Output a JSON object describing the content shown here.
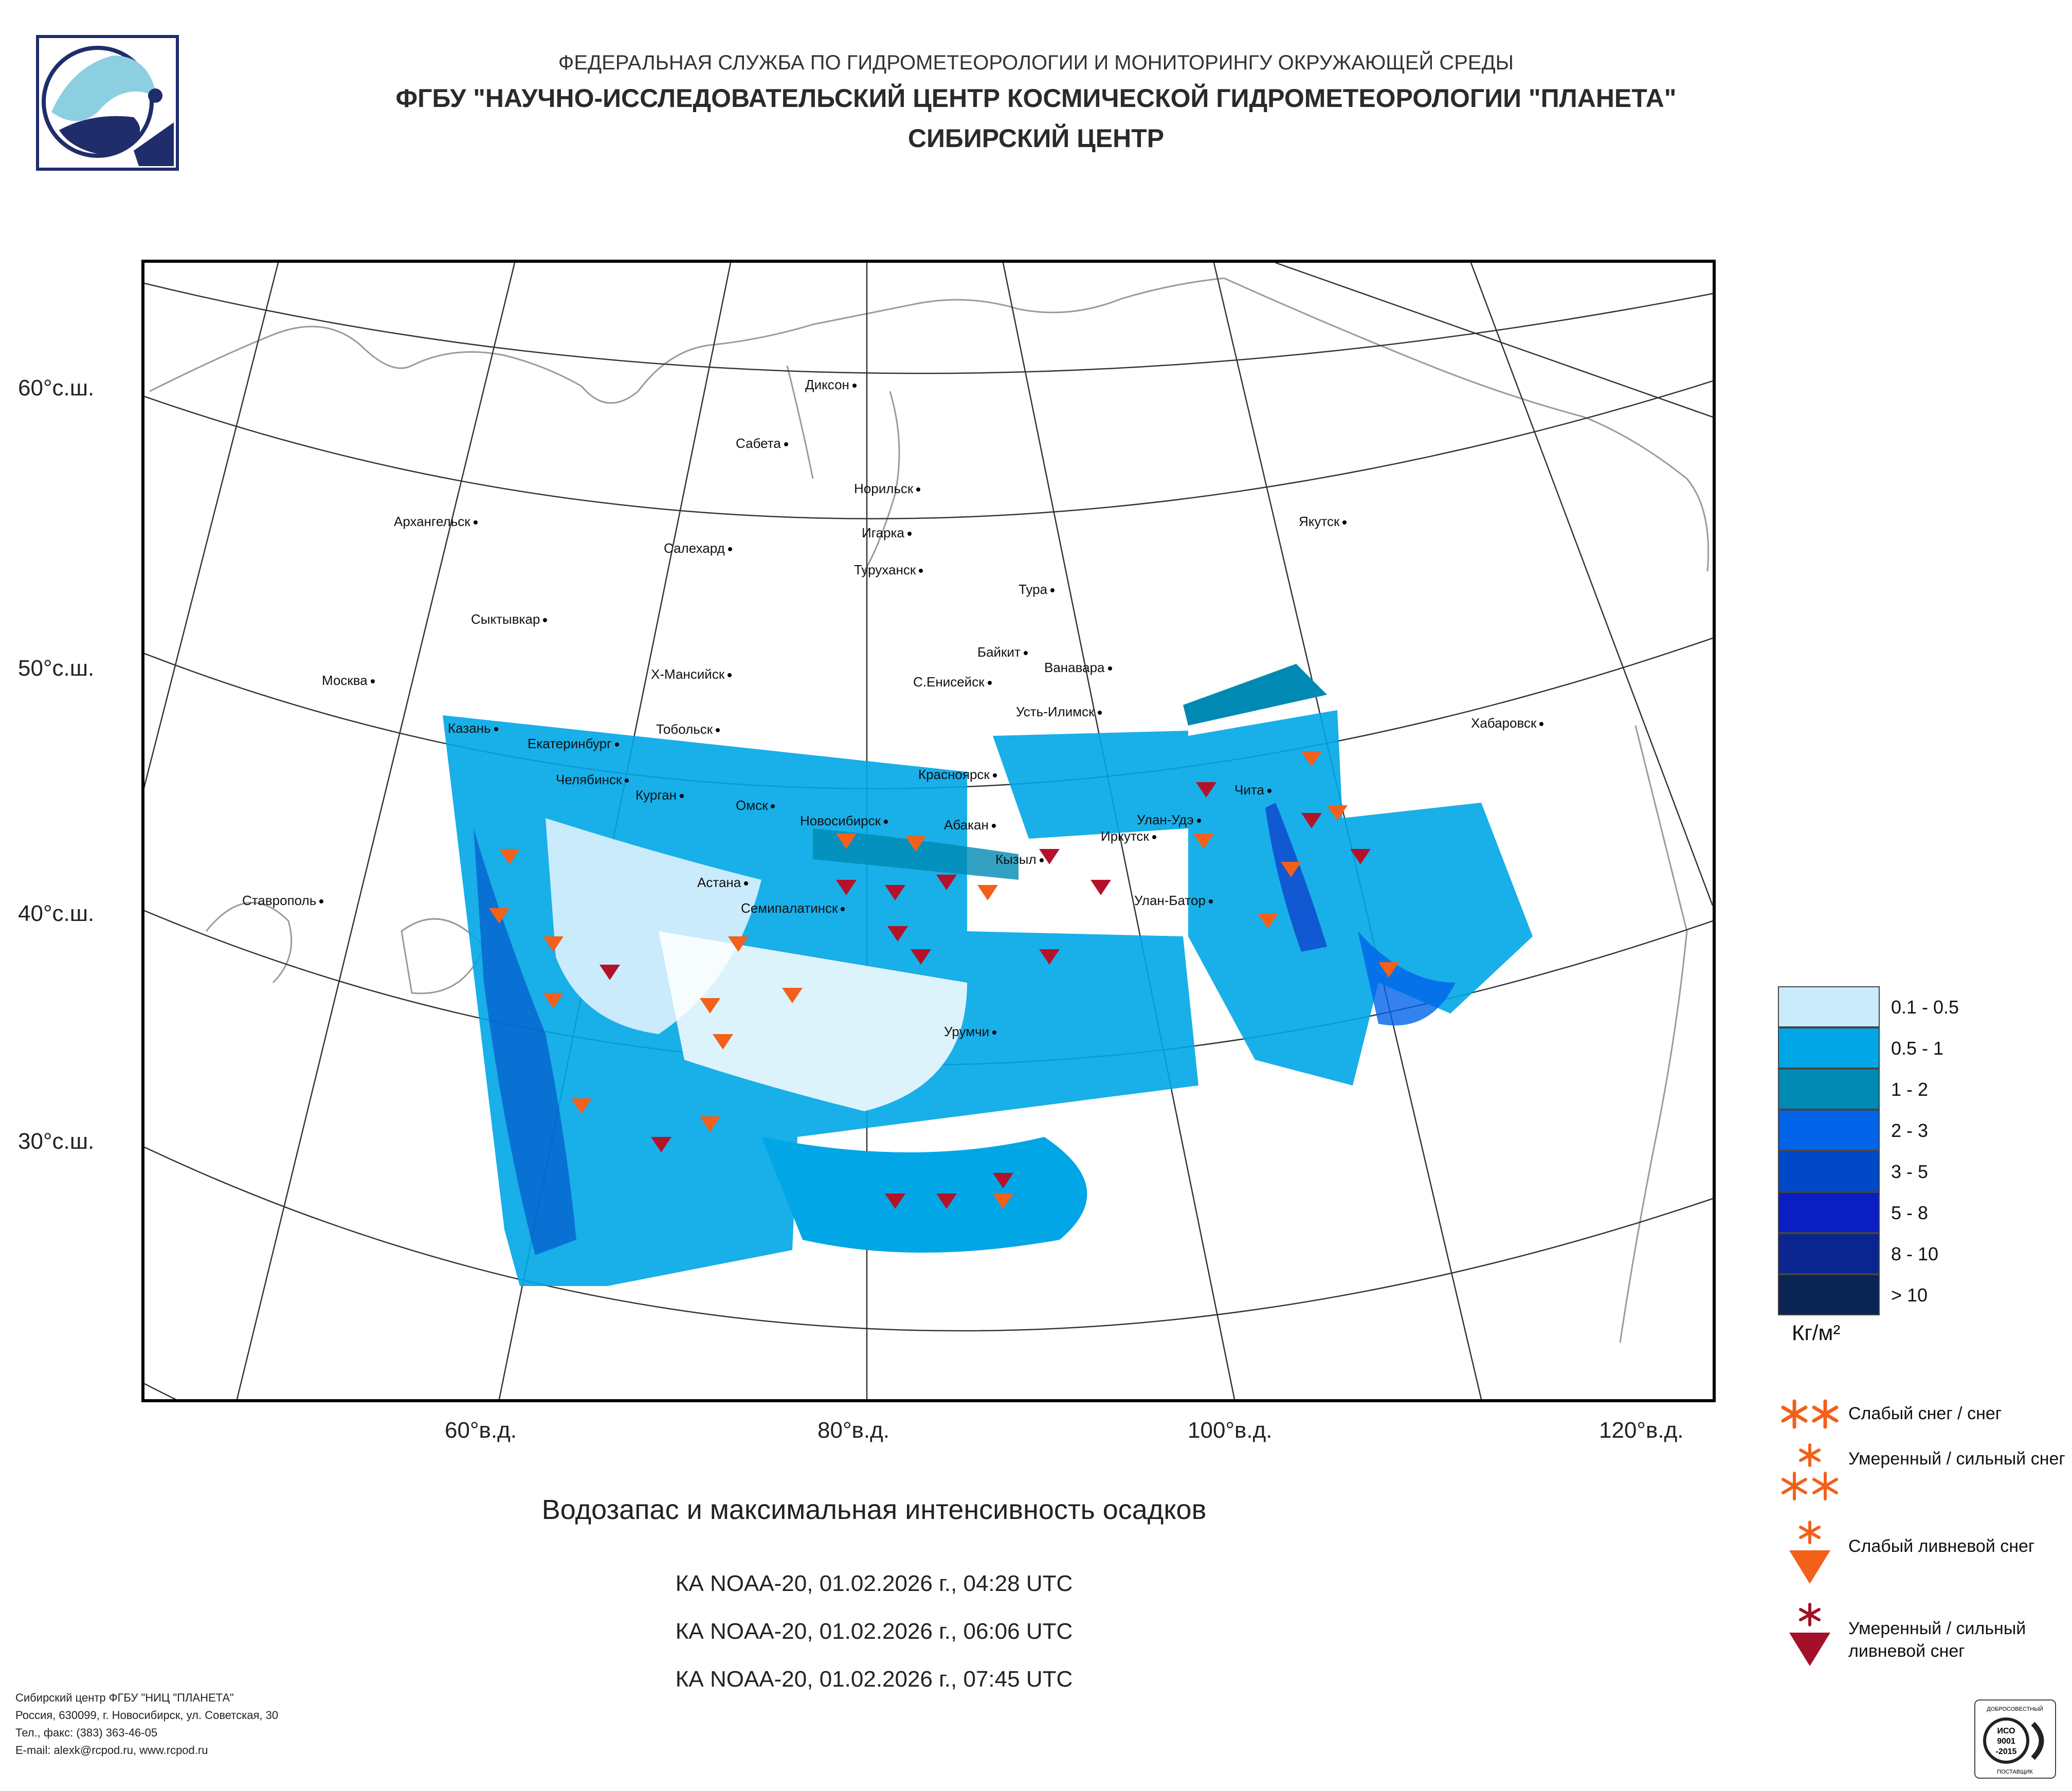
{
  "header": {
    "line1": "ФЕДЕРАЛЬНАЯ СЛУЖБА ПО ГИДРОМЕТЕОРОЛОГИИ И МОНИТОРИНГУ ОКРУЖАЮЩЕЙ СРЕДЫ",
    "line2": "ФГБУ \"НАУЧНО-ИССЛЕДОВАТЕЛЬСКИЙ ЦЕНТР КОСМИЧЕСКОЙ ГИДРОМЕТЕОРОЛОГИИ \"ПЛАНЕТА\"",
    "line3": "СИБИРСКИЙ ЦЕНТР"
  },
  "map": {
    "lat_labels": [
      "60°с.ш.",
      "50°с.ш.",
      "40°с.ш.",
      "30°с.ш."
    ],
    "lon_labels": [
      "60°в.д.",
      "80°в.д.",
      "100°в.д.",
      "120°в.д."
    ],
    "cities": [
      "Диксон",
      "Сабета",
      "Норильск",
      "Архангельск",
      "Салехард",
      "Игарка",
      "Туруханск",
      "Якутск",
      "Тура",
      "Сыктывкар",
      "Байкит",
      "Ванавара",
      "Москва",
      "Х-Мансийск",
      "С.Енисейск",
      "Усть-Илимск",
      "Хабаровск",
      "Казань",
      "Тобольск",
      "Екатеринбург",
      "Челябинск",
      "Курган",
      "Красноярск",
      "Омск",
      "Новосибирск",
      "Абакан",
      "Улан-Удэ",
      "Чита",
      "Иркутск",
      "Кызыл",
      "Астана",
      "Семипалатинск",
      "Улан-Батор",
      "Ставрополь",
      "Урумчи"
    ]
  },
  "legend": {
    "items": [
      {
        "label": "0.1 - 0.5",
        "color": "#c9ebfb"
      },
      {
        "label": "0.5 - 1",
        "color": "#00a6e6"
      },
      {
        "label": "1 - 2",
        "color": "#0089b3"
      },
      {
        "label": "2 - 3",
        "color": "#0063e8"
      },
      {
        "label": "3 - 5",
        "color": "#0048c6"
      },
      {
        "label": "5 - 8",
        "color": "#0b1ec4"
      },
      {
        "label": "8 - 10",
        "color": "#0b2590"
      },
      {
        "label": "> 10",
        "color": "#0a2554"
      }
    ],
    "units": "Кг/м²",
    "symbols": [
      {
        "label": "Слабый снег / снег",
        "icon": "light-snow-icon"
      },
      {
        "label": "Умеренный / сильный снег",
        "icon": "heavy-snow-icon"
      },
      {
        "label": "Слабый ливневой снег",
        "icon": "light-snow-shower-icon"
      },
      {
        "label": "Умеренный / сильный ливневой снег",
        "icon": "heavy-snow-shower-icon"
      }
    ]
  },
  "caption": "Водозапас и максимальная интенсивность осадков",
  "passes": [
    "КА NOAA-20, 01.02.2026 г., 04:28 UTC",
    "КА NOAA-20, 01.02.2026 г., 06:06 UTC",
    "КА NOAA-20, 01.02.2026 г., 07:45 UTC"
  ],
  "footer": {
    "line1": "Сибирский центр ФГБУ \"НИЦ \"ПЛАНЕТА\"",
    "line2": "Россия, 630099, г. Новосибирск, ул. Советская, 30",
    "line3": "Тел., факс: (383) 363-46-05",
    "line4": "E-mail: alexk@rcpod.ru, www.rcpod.ru"
  },
  "certificate": {
    "line1": "ДОБРОСОВЕСТНЫЙ",
    "line2": "ИСО",
    "line3": "9001",
    "line4": "-2015",
    "line5": "ПОСТАВЩИК"
  }
}
